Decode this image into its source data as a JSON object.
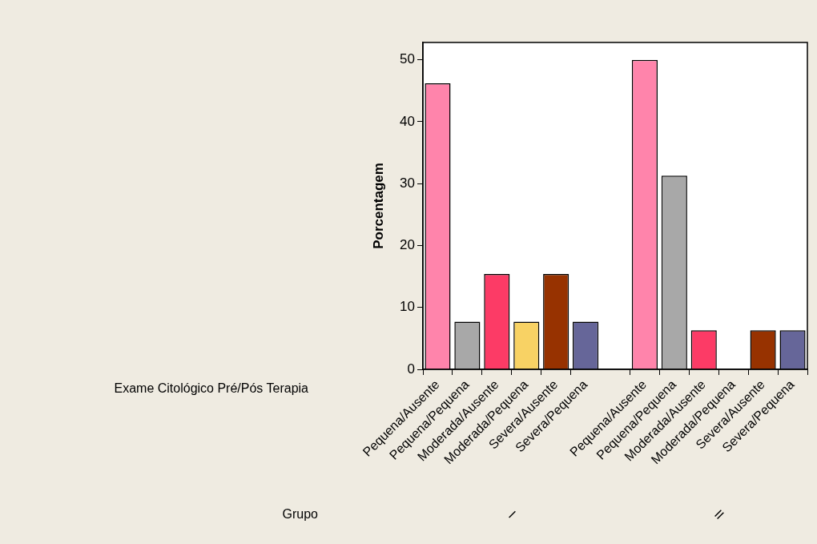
{
  "chart_data": {
    "type": "bar",
    "ylabel": "Porcentagem",
    "xlabel": "Exame Citológico Pré/Pós Terapia",
    "categories": [
      "Pequena/Ausente",
      "Pequena/Pequena",
      "Moderada/Ausente",
      "Moderada/Pequena",
      "Severa/Ausente",
      "Severa/Pequena",
      null,
      "Pequena/Ausente",
      "Pequena/Pequena",
      "Moderada/Ausente",
      "Moderada/Pequena",
      "Severa/Ausente",
      "Severa/Pequena"
    ],
    "values": [
      46.2,
      7.7,
      15.4,
      7.7,
      15.4,
      7.7,
      null,
      50,
      31.3,
      6.3,
      0,
      6.3,
      6.3
    ],
    "colors": [
      "#ff84ab",
      "#a8a8a8",
      "#fc3b66",
      "#f8d264",
      "#973200",
      "#666699",
      "#ffffff",
      "#ff84ab",
      "#a8a8a8",
      "#fc3b66",
      "#f8d264",
      "#973200",
      "#666699"
    ],
    "ylim": [
      0,
      52.8
    ],
    "yticks": [
      0,
      10,
      20,
      30,
      40,
      50
    ],
    "grid": false,
    "legend": false,
    "annotations": [
      "Grupo",
      "I",
      "II"
    ]
  }
}
